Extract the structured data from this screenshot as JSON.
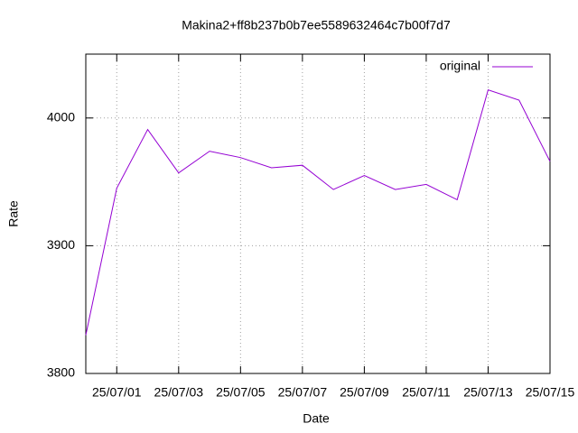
{
  "chart_data": {
    "type": "line",
    "title": "Makina2+ff8b237b0b7ee5589632464c7b00f7d7",
    "x_label": "Date",
    "y_label": "Rate",
    "x": [
      "25/06/30",
      "25/07/01",
      "25/07/02",
      "25/07/03",
      "25/07/04",
      "25/07/05",
      "25/07/06",
      "25/07/07",
      "25/07/08",
      "25/07/09",
      "25/07/10",
      "25/07/11",
      "25/07/12",
      "25/07/13",
      "25/07/14",
      "25/07/15"
    ],
    "series": [
      {
        "name": "original",
        "color": "#9400d3",
        "values": [
          3830,
          3945,
          3991,
          3957,
          3974,
          3969,
          3961,
          3963,
          3944,
          3955,
          3944,
          3948,
          3936,
          4022,
          4014,
          3966
        ]
      }
    ],
    "xlim": [
      "25/06/30",
      "25/07/15"
    ],
    "xticks": [
      "25/07/01",
      "25/07/03",
      "25/07/05",
      "25/07/07",
      "25/07/09",
      "25/07/11",
      "25/07/13",
      "25/07/15"
    ],
    "ylim": [
      3800,
      4050
    ],
    "yticks": [
      3800,
      3900,
      4000
    ],
    "grid": true,
    "legend": "upper right"
  }
}
